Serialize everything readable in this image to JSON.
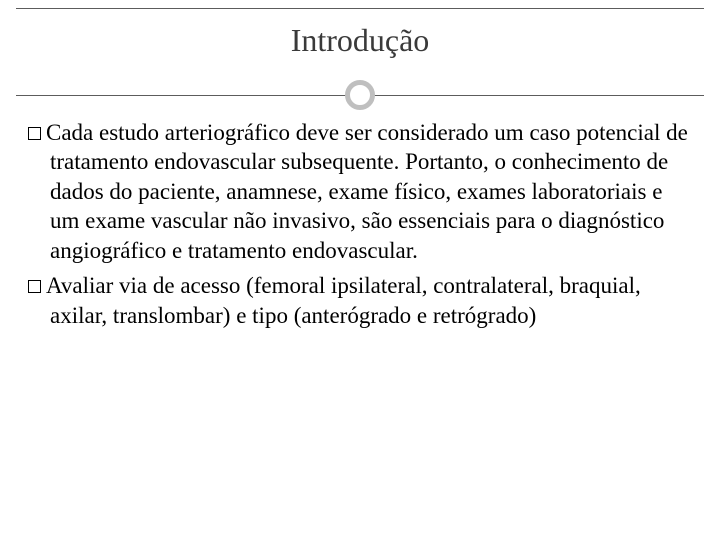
{
  "slide": {
    "title": "Introdução",
    "title_color": "#3a3a3a",
    "title_fontsize": 32,
    "rule_color": "#5c5c5c",
    "ring_border_color": "#bfbfbf",
    "ring_border_width": 5,
    "background_color": "#ffffff",
    "body_fontsize": 23,
    "body_color": "#000000",
    "bullets": [
      "Cada estudo arteriográfico deve ser considerado um caso potencial de tratamento endovascular subsequente. Portanto, o conhecimento de dados do paciente, anamnese, exame físico, exames laboratoriais e um exame vascular não invasivo, são essenciais para o diagnóstico angiográfico e tratamento endovascular.",
      "Avaliar via de acesso (femoral ipsilateral, contralateral, braquial, axilar, translombar) e tipo (anterógrado e retrógrado)"
    ]
  }
}
